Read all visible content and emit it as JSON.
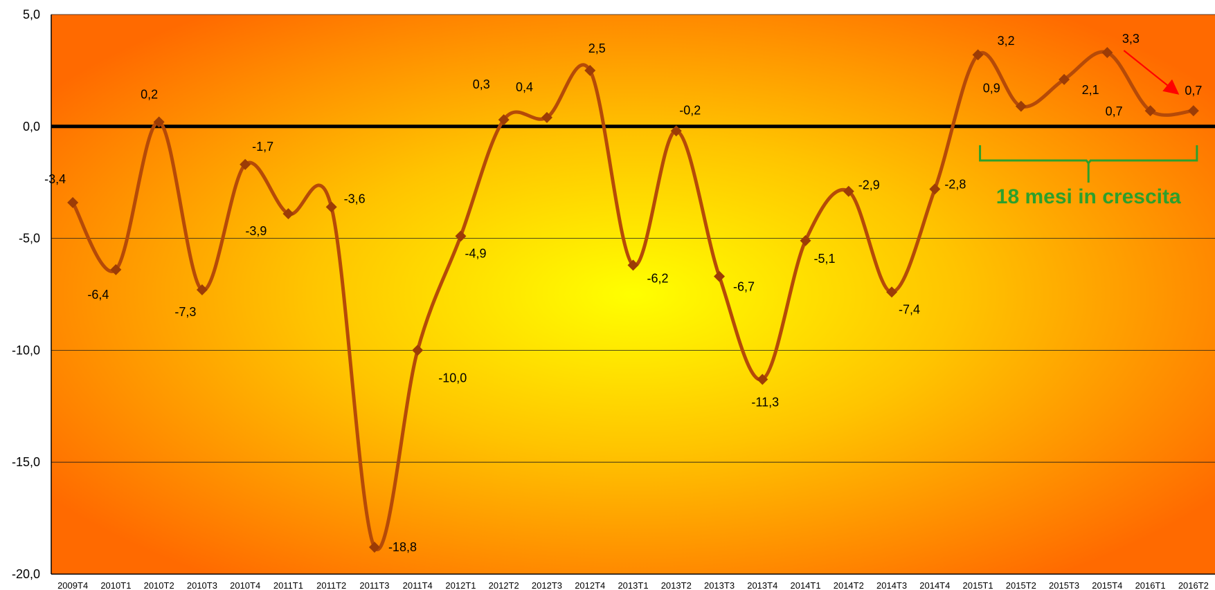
{
  "chart_data": {
    "type": "line",
    "title": "",
    "xlabel": "",
    "ylabel": "",
    "ylim": [
      -20,
      5
    ],
    "y_ticks": [
      "5,0",
      "0,0",
      "-5,0",
      "-10,0",
      "-15,0",
      "-20,0"
    ],
    "categories": [
      "2009T4",
      "2010T1",
      "2010T2",
      "2010T3",
      "2010T4",
      "2011T1",
      "2011T2",
      "2011T3",
      "2011T4",
      "2012T1",
      "2012T2",
      "2012T3",
      "2012T4",
      "2013T1",
      "2013T2",
      "2013T3",
      "2013T4",
      "2014T1",
      "2014T2",
      "2014T3",
      "2014T4",
      "2015T1",
      "2015T2",
      "2015T3",
      "2015T4",
      "2016T1",
      "2016T2"
    ],
    "series": [
      {
        "name": "",
        "color": "#b54a08",
        "values": [
          -3.4,
          -6.4,
          0.2,
          -7.3,
          -1.7,
          -3.9,
          -3.6,
          -18.8,
          -10.0,
          -4.9,
          0.3,
          0.4,
          2.5,
          -6.2,
          -0.2,
          -6.7,
          -11.3,
          -5.1,
          -2.9,
          -7.4,
          -2.8,
          3.2,
          0.9,
          2.1,
          3.3,
          0.7,
          0.7
        ],
        "labels": [
          "-3,4",
          "-6,4",
          "0,2",
          "-7,3",
          "-1,7",
          "-3,9",
          "-3,6",
          "-18,8",
          "-10,0",
          "-4,9",
          "0,3",
          "0,4",
          "2,5",
          "-6,2",
          "-0,2",
          "-6,7",
          "-11,3",
          "-5,1",
          "-2,9",
          "-7,4",
          "-2,8",
          "3,2",
          "0,9",
          "2,1",
          "3,3",
          "0,7",
          "0,7"
        ]
      }
    ],
    "grid": true,
    "zero_line": true,
    "annotation": {
      "text": "18 mesi in crescita",
      "color": "#2ca02c",
      "from_category": "2015T1",
      "to_category": "2016T2"
    },
    "arrow": {
      "from_category": "2015T4",
      "to_category": "2016T2",
      "color": "#ff0000"
    },
    "colors": {
      "background_center": "#ffff00",
      "background_edge": "#ff6a00",
      "line": "#b54a08",
      "marker": "#9c3c06"
    }
  }
}
